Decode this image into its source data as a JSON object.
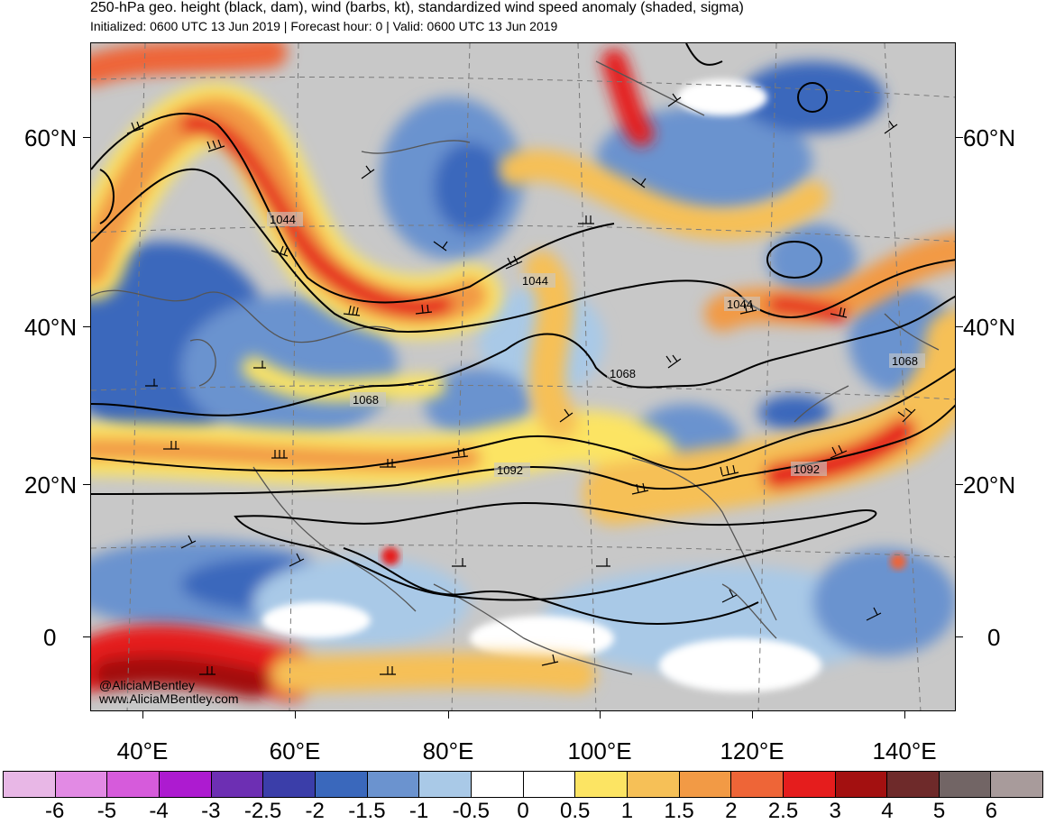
{
  "header": {
    "title": "250-hPa geo. height (black, dam), wind (barbs, kt), standardized wind speed anomaly (shaded, sigma)",
    "subtitle": "Initialized: 0600 UTC 13 Jun 2019 | Forecast hour: 0 | Valid: 0600 UTC 13 Jun 2019"
  },
  "map": {
    "lat_labels": [
      "60°N",
      "40°N",
      "20°N",
      "0"
    ],
    "lon_labels": [
      "40°E",
      "60°E",
      "80°E",
      "100°E",
      "120°E",
      "140°E"
    ],
    "contour_labels": [
      "1044",
      "1044",
      "1044",
      "1068",
      "1068",
      "1068",
      "1092",
      "1092"
    ]
  },
  "watermark": {
    "line1": "@AliciaMBentley",
    "line2": "www.AliciaMBentley.com"
  },
  "colorbar": {
    "colors": [
      "#e8b7e6",
      "#e28ae4",
      "#d65bdb",
      "#ad1bd0",
      "#6d2fb3",
      "#3b3ea9",
      "#3a68bc",
      "#6b93cf",
      "#a9c9e7",
      "#ffffff",
      "#ffffff",
      "#fce463",
      "#f6c057",
      "#f29a45",
      "#ee6537",
      "#e51d1d",
      "#a31010",
      "#6e2a2a",
      "#726565",
      "#a89b9b"
    ],
    "labels": [
      "-6",
      "-5",
      "-4",
      "-3",
      "-2.5",
      "-2",
      "-1.5",
      "-1",
      "-0.5",
      "0",
      "0.5",
      "1",
      "1.5",
      "2",
      "2.5",
      "3",
      "4",
      "5",
      "6"
    ]
  }
}
